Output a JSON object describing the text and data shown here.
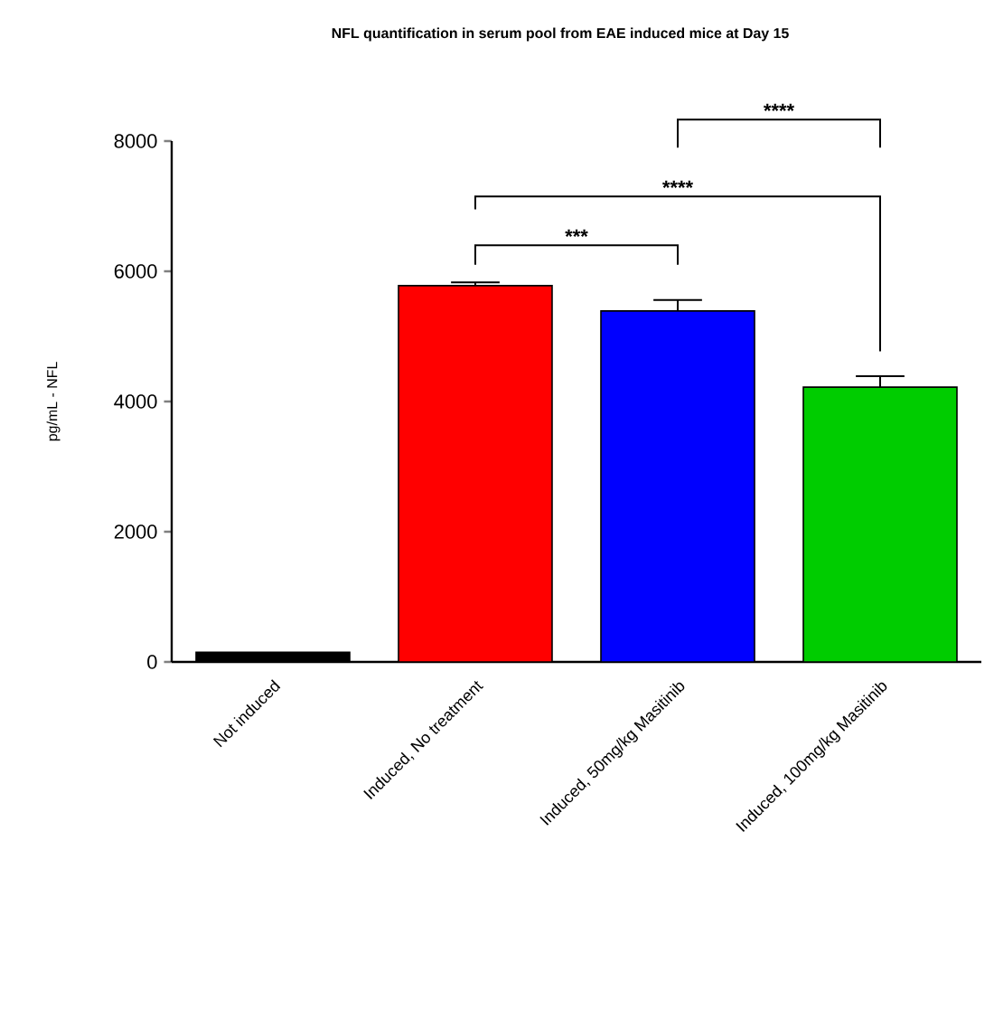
{
  "chart_data": {
    "type": "bar",
    "title": "NFL quantification in serum pool from EAE induced mice at Day 15",
    "ylabel": "pg/mL - NFL",
    "categories": [
      "Not induced",
      "Induced, No treatment",
      "Induced, 50mg/kg Masitinib",
      "Induced, 100mg/kg Masitinib"
    ],
    "values": [
      150,
      5780,
      5390,
      4220
    ],
    "errors": [
      null,
      [
        5780,
        5830
      ],
      [
        5390,
        5560
      ],
      [
        4220,
        4390
      ]
    ],
    "colors": [
      "#000000",
      "#ff0000",
      "#0000ff",
      "#00cc00"
    ],
    "ylim": [
      0,
      8000
    ],
    "yticks": [
      0,
      2000,
      4000,
      6000,
      8000
    ],
    "annotations": [
      "***",
      "****",
      "****"
    ]
  }
}
